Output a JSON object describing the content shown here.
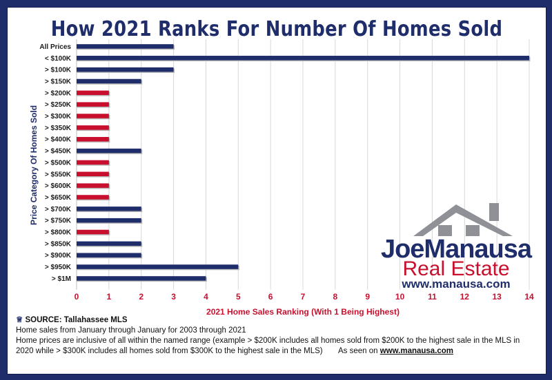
{
  "colors": {
    "navy": "#1f2d6b",
    "red": "#c8102e",
    "grid": "#d8d8d8"
  },
  "logo": {
    "brand_part1": "Joe",
    "brand_part2": "Manausa",
    "line2": "Real Estate",
    "url": "www.manausa.com",
    "icon": "house-roof-icon"
  },
  "notes": {
    "source_icon": "laurel-icon",
    "source": "SOURCE: Tallahassee MLS",
    "line1": "Home sales from January through January for 2003 through 2021",
    "line2": "Home prices are inclusive of all within the named range (example > $200K includes all homes sold from $200K to the highest sale in the MLS in",
    "line3": "2020 while > $300K includes all homes sold from $300K to the highest sale in the MLS)",
    "seen_on": "As seen on ",
    "seen_on_link": "www.manausa.com"
  },
  "chart_data": {
    "type": "bar",
    "orientation": "horizontal",
    "title": "How 2021 Ranks For Number Of Homes Sold",
    "xlabel": "2021 Home Sales Ranking (With 1 Being Highest)",
    "ylabel": "Price Category Of Homes Sold",
    "xlim": [
      0,
      14
    ],
    "xticks": [
      0,
      1,
      2,
      3,
      4,
      5,
      6,
      7,
      8,
      9,
      10,
      11,
      12,
      13,
      14
    ],
    "grid": "vertical",
    "categories": [
      "All Prices",
      "< $100K",
      "> $100K",
      "> $150K",
      "> $200K",
      "> $250K",
      "> $300K",
      "> $350K",
      "> $400K",
      "> $450K",
      "> $500K",
      "> $550K",
      "> $600K",
      "> $650K",
      "> $700K",
      "> $750K",
      "> $800K",
      "> $850K",
      "> $900K",
      "> $950K",
      "> $1M"
    ],
    "values": [
      3,
      14,
      3,
      2,
      1,
      1,
      1,
      1,
      1,
      2,
      1,
      1,
      1,
      1,
      2,
      2,
      1,
      2,
      2,
      5,
      4
    ],
    "bar_colors": [
      "#1f2d6b",
      "#1f2d6b",
      "#1f2d6b",
      "#1f2d6b",
      "#c8102e",
      "#c8102e",
      "#c8102e",
      "#c8102e",
      "#c8102e",
      "#1f2d6b",
      "#c8102e",
      "#c8102e",
      "#c8102e",
      "#c8102e",
      "#1f2d6b",
      "#1f2d6b",
      "#c8102e",
      "#1f2d6b",
      "#1f2d6b",
      "#1f2d6b",
      "#1f2d6b"
    ]
  }
}
